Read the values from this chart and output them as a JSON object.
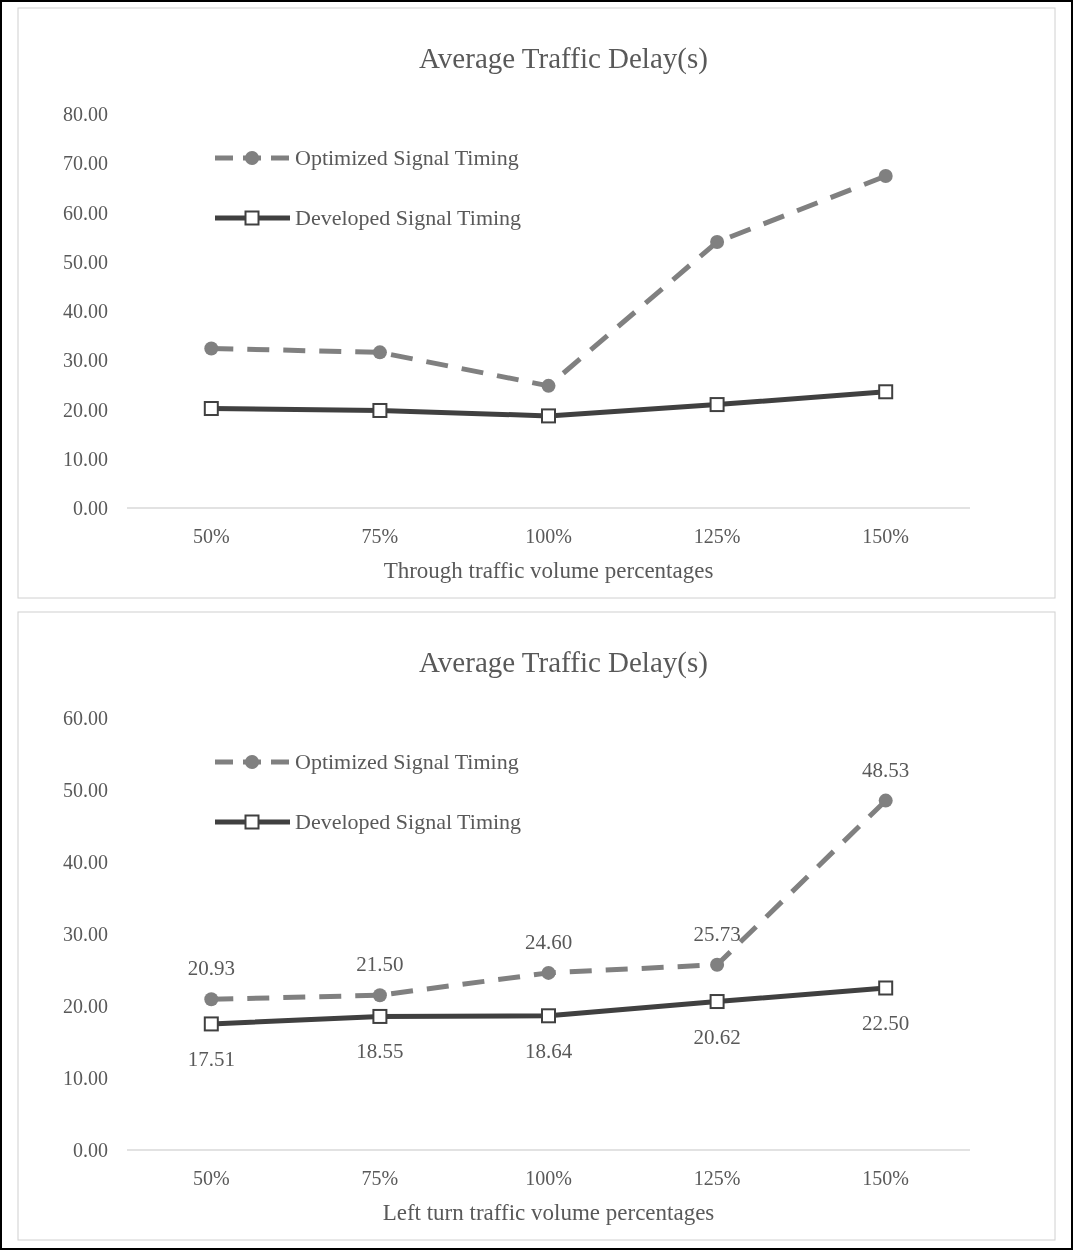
{
  "chart_data": [
    {
      "type": "line",
      "title": "Average Traffic Delay(s)",
      "xlabel": "Through traffic volume percentages",
      "categories": [
        "50%",
        "75%",
        "100%",
        "125%",
        "150%"
      ],
      "ylim": [
        0,
        80
      ],
      "yticks": [
        {
          "value": 0,
          "label": "0.00"
        },
        {
          "value": 10,
          "label": "10.00"
        },
        {
          "value": 20,
          "label": "20.00"
        },
        {
          "value": 30,
          "label": "30.00"
        },
        {
          "value": 40,
          "label": "40.00"
        },
        {
          "value": 50,
          "label": "50.00"
        },
        {
          "value": 60,
          "label": "60.00"
        },
        {
          "value": 70,
          "label": "70.00"
        },
        {
          "value": 80,
          "label": "80.00"
        }
      ],
      "legend": "top left",
      "series": [
        {
          "name": "Optimized Signal Timing",
          "color": "#808080",
          "marker": "circle",
          "line_style": "dashed",
          "values": [
            32.4,
            31.6,
            24.8,
            54.0,
            67.4
          ]
        },
        {
          "name": "Developed Signal Timing",
          "color": "#404040",
          "marker": "square",
          "line_style": "solid",
          "values": [
            20.2,
            19.8,
            18.7,
            21.0,
            23.6
          ]
        }
      ]
    },
    {
      "type": "line",
      "title": "Average Traffic Delay(s)",
      "xlabel": "Left turn traffic volume percentages",
      "categories": [
        "50%",
        "75%",
        "100%",
        "125%",
        "150%"
      ],
      "ylim": [
        0,
        60
      ],
      "yticks": [
        {
          "value": 0,
          "label": "0.00"
        },
        {
          "value": 10,
          "label": "10.00"
        },
        {
          "value": 20,
          "label": "20.00"
        },
        {
          "value": 30,
          "label": "30.00"
        },
        {
          "value": 40,
          "label": "40.00"
        },
        {
          "value": 50,
          "label": "50.00"
        },
        {
          "value": 60,
          "label": "60.00"
        }
      ],
      "legend": "top left",
      "data_labels": true,
      "series": [
        {
          "name": "Optimized Signal Timing",
          "color": "#808080",
          "marker": "circle",
          "line_style": "dashed",
          "values": [
            20.93,
            21.5,
            24.6,
            25.73,
            48.53
          ],
          "value_labels": [
            "20.93",
            "21.50",
            "24.60",
            "25.73",
            "48.53"
          ]
        },
        {
          "name": "Developed Signal Timing",
          "color": "#404040",
          "marker": "square",
          "line_style": "solid",
          "values": [
            17.51,
            18.55,
            18.64,
            20.62,
            22.5
          ],
          "value_labels": [
            "17.51",
            "18.55",
            "18.64",
            "20.62",
            "22.50"
          ]
        }
      ]
    }
  ]
}
